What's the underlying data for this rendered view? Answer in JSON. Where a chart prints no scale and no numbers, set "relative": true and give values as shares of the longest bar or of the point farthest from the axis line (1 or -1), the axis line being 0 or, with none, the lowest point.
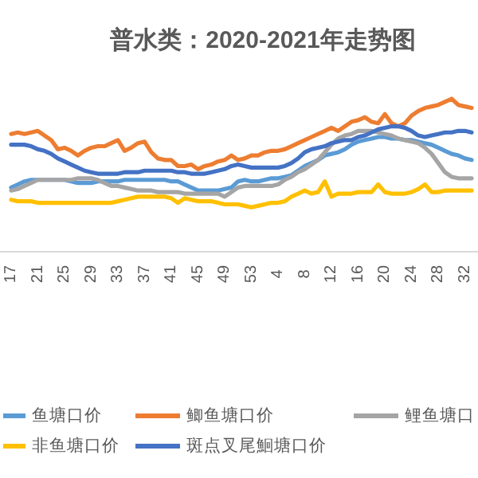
{
  "chart_data": {
    "type": "line",
    "title": "普水类：2020-2021年走势图",
    "relative": true,
    "legend": "bottom",
    "categories": [
      "17",
      null,
      null,
      null,
      "21",
      null,
      null,
      null,
      "25",
      null,
      null,
      null,
      "29",
      null,
      null,
      null,
      "33",
      null,
      null,
      null,
      "37",
      null,
      null,
      null,
      "41",
      null,
      null,
      null,
      "45",
      null,
      null,
      null,
      "49",
      null,
      null,
      null,
      "53",
      null,
      null,
      null,
      "4",
      null,
      null,
      null,
      "8",
      null,
      null,
      null,
      "12",
      null,
      null,
      null,
      "16",
      null,
      null,
      null,
      "20",
      null,
      null,
      null,
      "24",
      null,
      null,
      null,
      "28",
      null,
      null,
      null,
      "32",
      null
    ],
    "series": [
      {
        "name": "鱼塘口价",
        "color": "#5b9bd5",
        "values": [
          0.42,
          0.44,
          0.46,
          0.47,
          0.47,
          0.47,
          0.47,
          0.47,
          0.47,
          0.46,
          0.45,
          0.45,
          0.45,
          0.46,
          0.46,
          0.46,
          0.46,
          0.47,
          0.47,
          0.47,
          0.47,
          0.47,
          0.47,
          0.47,
          0.46,
          0.46,
          0.44,
          0.42,
          0.4,
          0.4,
          0.4,
          0.4,
          0.41,
          0.42,
          0.46,
          0.47,
          0.46,
          0.46,
          0.47,
          0.48,
          0.48,
          0.49,
          0.5,
          0.53,
          0.56,
          0.58,
          0.6,
          0.63,
          0.64,
          0.65,
          0.67,
          0.7,
          0.72,
          0.73,
          0.74,
          0.75,
          0.75,
          0.74,
          0.74,
          0.73,
          0.73,
          0.72,
          0.71,
          0.7,
          0.68,
          0.66,
          0.64,
          0.63,
          0.61,
          0.6
        ]
      },
      {
        "name": "鲫鱼塘口价",
        "color": "#ed7d31",
        "values": [
          0.77,
          0.78,
          0.77,
          0.78,
          0.79,
          0.76,
          0.73,
          0.67,
          0.68,
          0.66,
          0.63,
          0.66,
          0.68,
          0.69,
          0.69,
          0.71,
          0.73,
          0.66,
          0.68,
          0.71,
          0.72,
          0.65,
          0.61,
          0.6,
          0.6,
          0.56,
          0.56,
          0.57,
          0.54,
          0.56,
          0.57,
          0.59,
          0.6,
          0.63,
          0.6,
          0.61,
          0.63,
          0.63,
          0.65,
          0.66,
          0.66,
          0.67,
          0.69,
          0.71,
          0.73,
          0.75,
          0.77,
          0.79,
          0.81,
          0.79,
          0.82,
          0.85,
          0.86,
          0.88,
          0.85,
          0.84,
          0.9,
          0.84,
          0.82,
          0.84,
          0.89,
          0.92,
          0.94,
          0.95,
          0.96,
          0.98,
          1,
          0.96,
          0.95,
          0.94
        ]
      },
      {
        "name": "鲤鱼塘口",
        "color": "#a5a5a5",
        "values": [
          0.4,
          0.41,
          0.43,
          0.45,
          0.47,
          0.47,
          0.47,
          0.47,
          0.47,
          0.47,
          0.48,
          0.48,
          0.48,
          0.47,
          0.45,
          0.43,
          0.43,
          0.42,
          0.41,
          0.4,
          0.4,
          0.4,
          0.39,
          0.39,
          0.39,
          0.39,
          0.38,
          0.38,
          0.38,
          0.38,
          0.38,
          0.38,
          0.36,
          0.39,
          0.42,
          0.43,
          0.43,
          0.43,
          0.43,
          0.43,
          0.44,
          0.47,
          0.49,
          0.52,
          0.54,
          0.57,
          0.6,
          0.65,
          0.7,
          0.74,
          0.76,
          0.77,
          0.79,
          0.79,
          0.79,
          0.78,
          0.77,
          0.76,
          0.74,
          0.73,
          0.72,
          0.71,
          0.68,
          0.64,
          0.58,
          0.52,
          0.49,
          0.48,
          0.48,
          0.48
        ]
      },
      {
        "name": "非鱼塘口价",
        "color": "#ffc000",
        "values": [
          0.34,
          0.33,
          0.33,
          0.33,
          0.32,
          0.32,
          0.32,
          0.32,
          0.32,
          0.32,
          0.32,
          0.32,
          0.32,
          0.32,
          0.32,
          0.32,
          0.33,
          0.34,
          0.35,
          0.36,
          0.36,
          0.36,
          0.36,
          0.36,
          0.35,
          0.32,
          0.35,
          0.34,
          0.33,
          0.33,
          0.33,
          0.32,
          0.31,
          0.31,
          0.31,
          0.3,
          0.29,
          0.3,
          0.31,
          0.32,
          0.32,
          0.33,
          0.36,
          0.38,
          0.4,
          0.38,
          0.39,
          0.46,
          0.36,
          0.38,
          0.38,
          0.38,
          0.39,
          0.39,
          0.39,
          0.44,
          0.39,
          0.38,
          0.38,
          0.38,
          0.39,
          0.41,
          0.44,
          0.39,
          0.39,
          0.4,
          0.4,
          0.4,
          0.4,
          0.4
        ]
      },
      {
        "name": "斑点叉尾鮰塘口价",
        "color": "#4472c4",
        "values": [
          0.7,
          0.7,
          0.7,
          0.69,
          0.67,
          0.66,
          0.64,
          0.61,
          0.59,
          0.57,
          0.55,
          0.53,
          0.52,
          0.51,
          0.51,
          0.51,
          0.51,
          0.52,
          0.52,
          0.52,
          0.53,
          0.53,
          0.53,
          0.53,
          0.53,
          0.52,
          0.52,
          0.51,
          0.51,
          0.51,
          0.52,
          0.53,
          0.54,
          0.56,
          0.57,
          0.56,
          0.55,
          0.55,
          0.55,
          0.55,
          0.55,
          0.56,
          0.58,
          0.61,
          0.65,
          0.67,
          0.68,
          0.69,
          0.71,
          0.72,
          0.73,
          0.73,
          0.75,
          0.76,
          0.78,
          0.8,
          0.81,
          0.82,
          0.82,
          0.81,
          0.79,
          0.76,
          0.75,
          0.76,
          0.77,
          0.78,
          0.78,
          0.79,
          0.79,
          0.78
        ]
      }
    ]
  }
}
